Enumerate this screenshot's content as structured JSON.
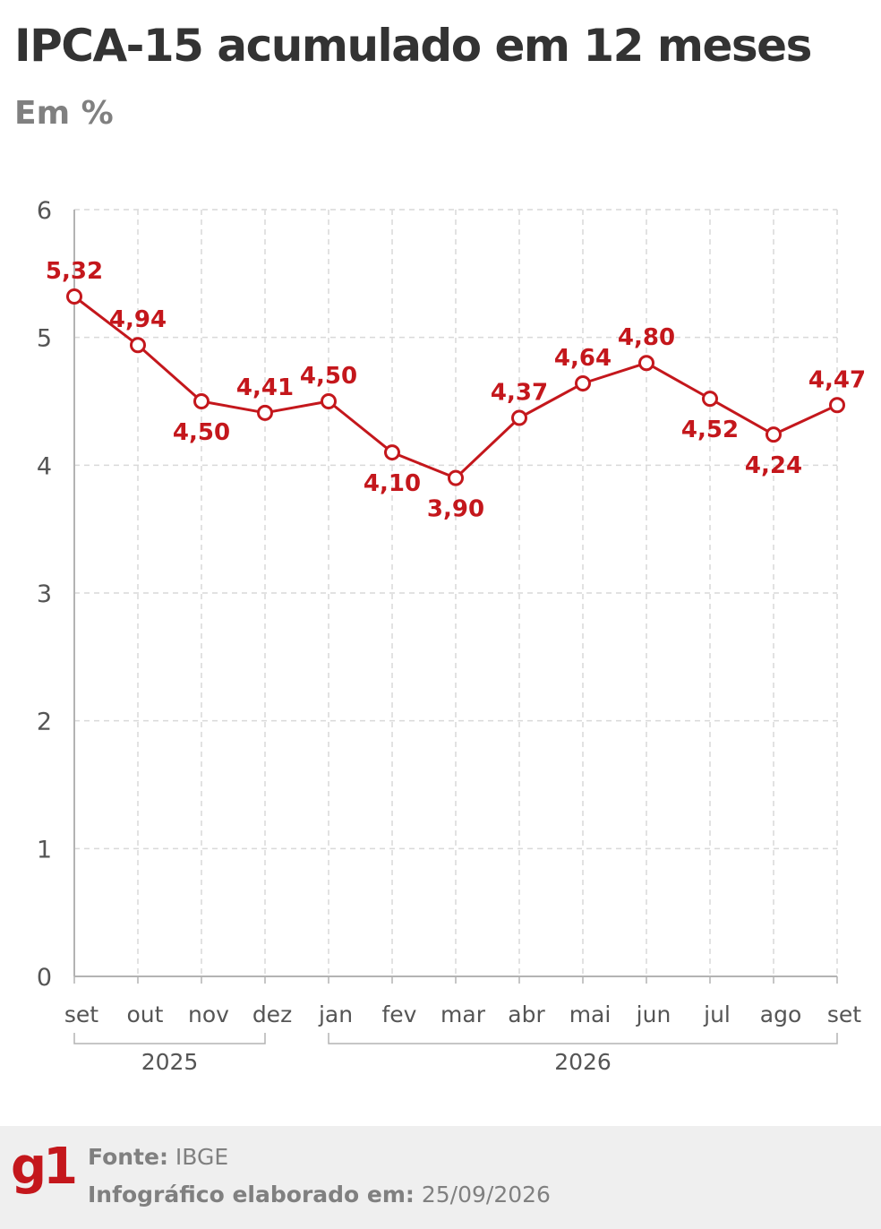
{
  "title": "IPCA-15 acumulado em 12 meses",
  "subtitle": "Em %",
  "colors": {
    "series": "#c4171c",
    "title": "#333333",
    "subtitle": "#808080",
    "grid": "#d9d9d9",
    "axis": "#b3b3b3",
    "tick_text": "#555555",
    "footer_bg": "#efefef",
    "logo": "#c4171c"
  },
  "chart_data": {
    "type": "line",
    "categories": [
      "set",
      "out",
      "nov",
      "dez",
      "jan",
      "fev",
      "mar",
      "abr",
      "mai",
      "jun",
      "jul",
      "ago",
      "set"
    ],
    "series": [
      {
        "values": [
          5.32,
          4.94,
          4.5,
          4.41,
          4.5,
          4.1,
          3.9,
          4.37,
          4.64,
          4.8,
          4.52,
          4.24,
          4.47
        ],
        "labels": [
          "5,32",
          "4,94",
          "4,50",
          "4,41",
          "4,50",
          "4,10",
          "3,90",
          "4,37",
          "4,64",
          "4,80",
          "4,52",
          "4,24",
          "4,47"
        ],
        "label_position": [
          "above",
          "above",
          "below",
          "above",
          "above",
          "below",
          "below",
          "above",
          "above",
          "above",
          "below",
          "below",
          "above"
        ]
      }
    ],
    "year_groups": [
      {
        "label": "2025",
        "from": 0,
        "to": 3
      },
      {
        "label": "2026",
        "from": 4,
        "to": 12
      }
    ],
    "yticks": [
      "0",
      "1",
      "2",
      "3",
      "4",
      "5",
      "6"
    ],
    "ylim": [
      0,
      6
    ],
    "xlabel": "",
    "ylabel": "",
    "grid": true,
    "marker": "open-circle"
  },
  "footer": {
    "logo": "g1",
    "source_label": "Fonte:",
    "source_value": "IBGE",
    "date_label": "Infográfico elaborado em:",
    "date_value": "25/09/2026"
  }
}
